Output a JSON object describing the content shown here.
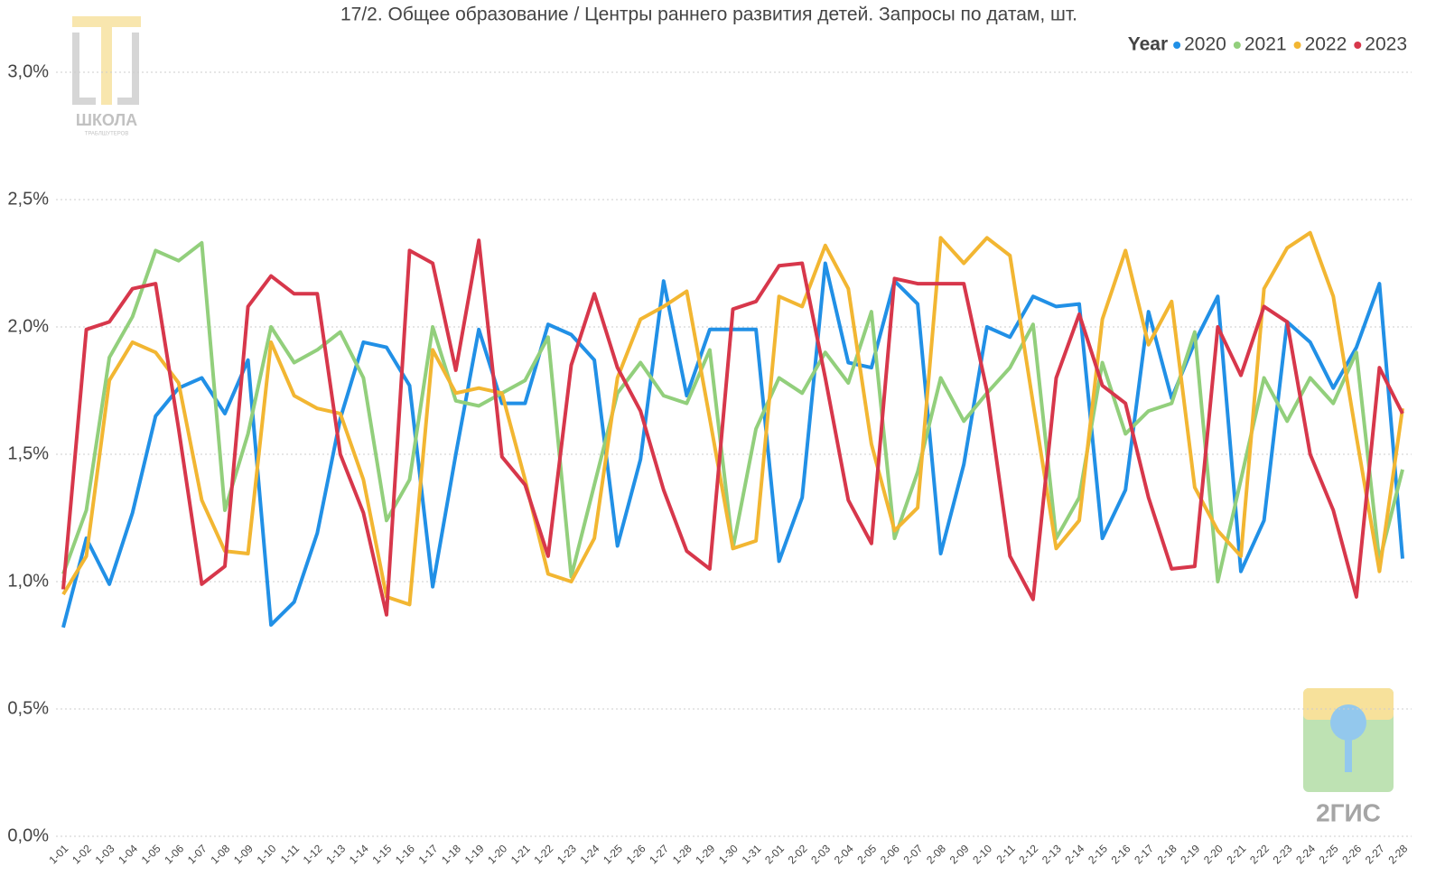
{
  "chart_data": {
    "type": "line",
    "title": "17/2. Общее образование / Центры раннего развития детей. Запросы по датам, шт.",
    "legend_title": "Year",
    "legend": "top-right",
    "grid": true,
    "watermarks": [
      "ШКОЛА",
      "ТРАБЛШУТЕРОВ",
      "2ГИС"
    ],
    "categories": [
      "1-01",
      "1-02",
      "1-03",
      "1-04",
      "1-05",
      "1-06",
      "1-07",
      "1-08",
      "1-09",
      "1-10",
      "1-11",
      "1-12",
      "1-13",
      "1-14",
      "1-15",
      "1-16",
      "1-17",
      "1-18",
      "1-19",
      "1-20",
      "1-21",
      "1-22",
      "1-23",
      "1-24",
      "1-25",
      "1-26",
      "1-27",
      "1-28",
      "1-29",
      "1-30",
      "1-31",
      "2-01",
      "2-02",
      "2-03",
      "2-04",
      "2-05",
      "2-06",
      "2-07",
      "2-08",
      "2-09",
      "2-10",
      "2-11",
      "2-12",
      "2-13",
      "2-14",
      "2-15",
      "2-16",
      "2-17",
      "2-18",
      "2-19",
      "2-20",
      "2-21",
      "2-22",
      "2-23",
      "2-24",
      "2-25",
      "2-26",
      "2-27",
      "2-28"
    ],
    "ylim": [
      0,
      3.2
    ],
    "yticks": [
      {
        "value": 0,
        "label": "0,0%"
      },
      {
        "value": 0.5,
        "label": "0,5%"
      },
      {
        "value": 1.0,
        "label": "1,0%"
      },
      {
        "value": 1.5,
        "label": "1,5%"
      },
      {
        "value": 2.0,
        "label": "2,0%"
      },
      {
        "value": 2.5,
        "label": "2,5%"
      },
      {
        "value": 3.0,
        "label": "3,0%"
      }
    ],
    "series": [
      {
        "name": "2020",
        "color": "#2190e6",
        "values": [
          0.82,
          1.17,
          0.99,
          1.27,
          1.65,
          1.76,
          1.8,
          1.66,
          1.87,
          0.83,
          0.92,
          1.19,
          1.64,
          1.94,
          1.92,
          1.77,
          0.98,
          1.5,
          1.99,
          1.7,
          1.7,
          2.01,
          1.97,
          1.87,
          1.14,
          1.48,
          2.18,
          1.73,
          1.99,
          1.99,
          1.99,
          1.08,
          1.33,
          2.25,
          1.86,
          1.84,
          2.18,
          2.09,
          1.11,
          1.46,
          2.0,
          1.96,
          2.12,
          2.08,
          2.09,
          1.17,
          1.36,
          2.06,
          1.72,
          1.94,
          2.12,
          1.04,
          1.24,
          2.02,
          1.94,
          1.76,
          1.92,
          2.17,
          1.09
        ]
      },
      {
        "name": "2021",
        "color": "#92cf7c",
        "values": [
          1.03,
          1.28,
          1.88,
          2.04,
          2.3,
          2.26,
          2.33,
          1.28,
          1.58,
          2.0,
          1.86,
          1.91,
          1.98,
          1.8,
          1.24,
          1.4,
          2.0,
          1.71,
          1.69,
          1.74,
          1.79,
          1.96,
          1.02,
          1.38,
          1.74,
          1.86,
          1.73,
          1.7,
          1.91,
          1.13,
          1.6,
          1.8,
          1.74,
          1.9,
          1.78,
          2.06,
          1.17,
          1.43,
          1.8,
          1.63,
          1.74,
          1.84,
          2.01,
          1.17,
          1.33,
          1.86,
          1.58,
          1.67,
          1.7,
          1.98,
          1.0,
          1.4,
          1.8,
          1.63,
          1.8,
          1.7,
          1.9,
          1.08,
          1.44
        ]
      },
      {
        "name": "2022",
        "color": "#f2b632",
        "values": [
          0.95,
          1.1,
          1.79,
          1.94,
          1.9,
          1.78,
          1.32,
          1.12,
          1.11,
          1.94,
          1.73,
          1.68,
          1.66,
          1.4,
          0.94,
          0.91,
          1.91,
          1.74,
          1.76,
          1.74,
          1.4,
          1.03,
          1.0,
          1.17,
          1.8,
          2.03,
          2.08,
          2.14,
          1.64,
          1.13,
          1.16,
          2.12,
          2.08,
          2.32,
          2.15,
          1.54,
          1.2,
          1.29,
          2.35,
          2.25,
          2.35,
          2.28,
          1.7,
          1.13,
          1.24,
          2.03,
          2.3,
          1.93,
          2.1,
          1.37,
          1.2,
          1.1,
          2.15,
          2.31,
          2.37,
          2.12,
          1.57,
          1.04,
          1.68
        ]
      },
      {
        "name": "2023",
        "color": "#d7374b",
        "values": [
          0.97,
          1.99,
          2.02,
          2.15,
          2.17,
          1.6,
          0.99,
          1.06,
          2.08,
          2.2,
          2.13,
          2.13,
          1.5,
          1.27,
          0.87,
          2.3,
          2.25,
          1.83,
          2.34,
          1.49,
          1.38,
          1.1,
          1.85,
          2.13,
          1.84,
          1.67,
          1.36,
          1.12,
          1.05,
          2.07,
          2.1,
          2.24,
          2.25,
          1.8,
          1.32,
          1.15,
          2.19,
          2.17,
          2.17,
          2.17,
          1.75,
          1.1,
          0.93,
          1.8,
          2.05,
          1.77,
          1.7,
          1.33,
          1.05,
          1.06,
          2.0,
          1.81,
          2.08,
          2.02,
          1.5,
          1.28,
          0.94,
          1.84,
          1.66
        ]
      }
    ]
  }
}
